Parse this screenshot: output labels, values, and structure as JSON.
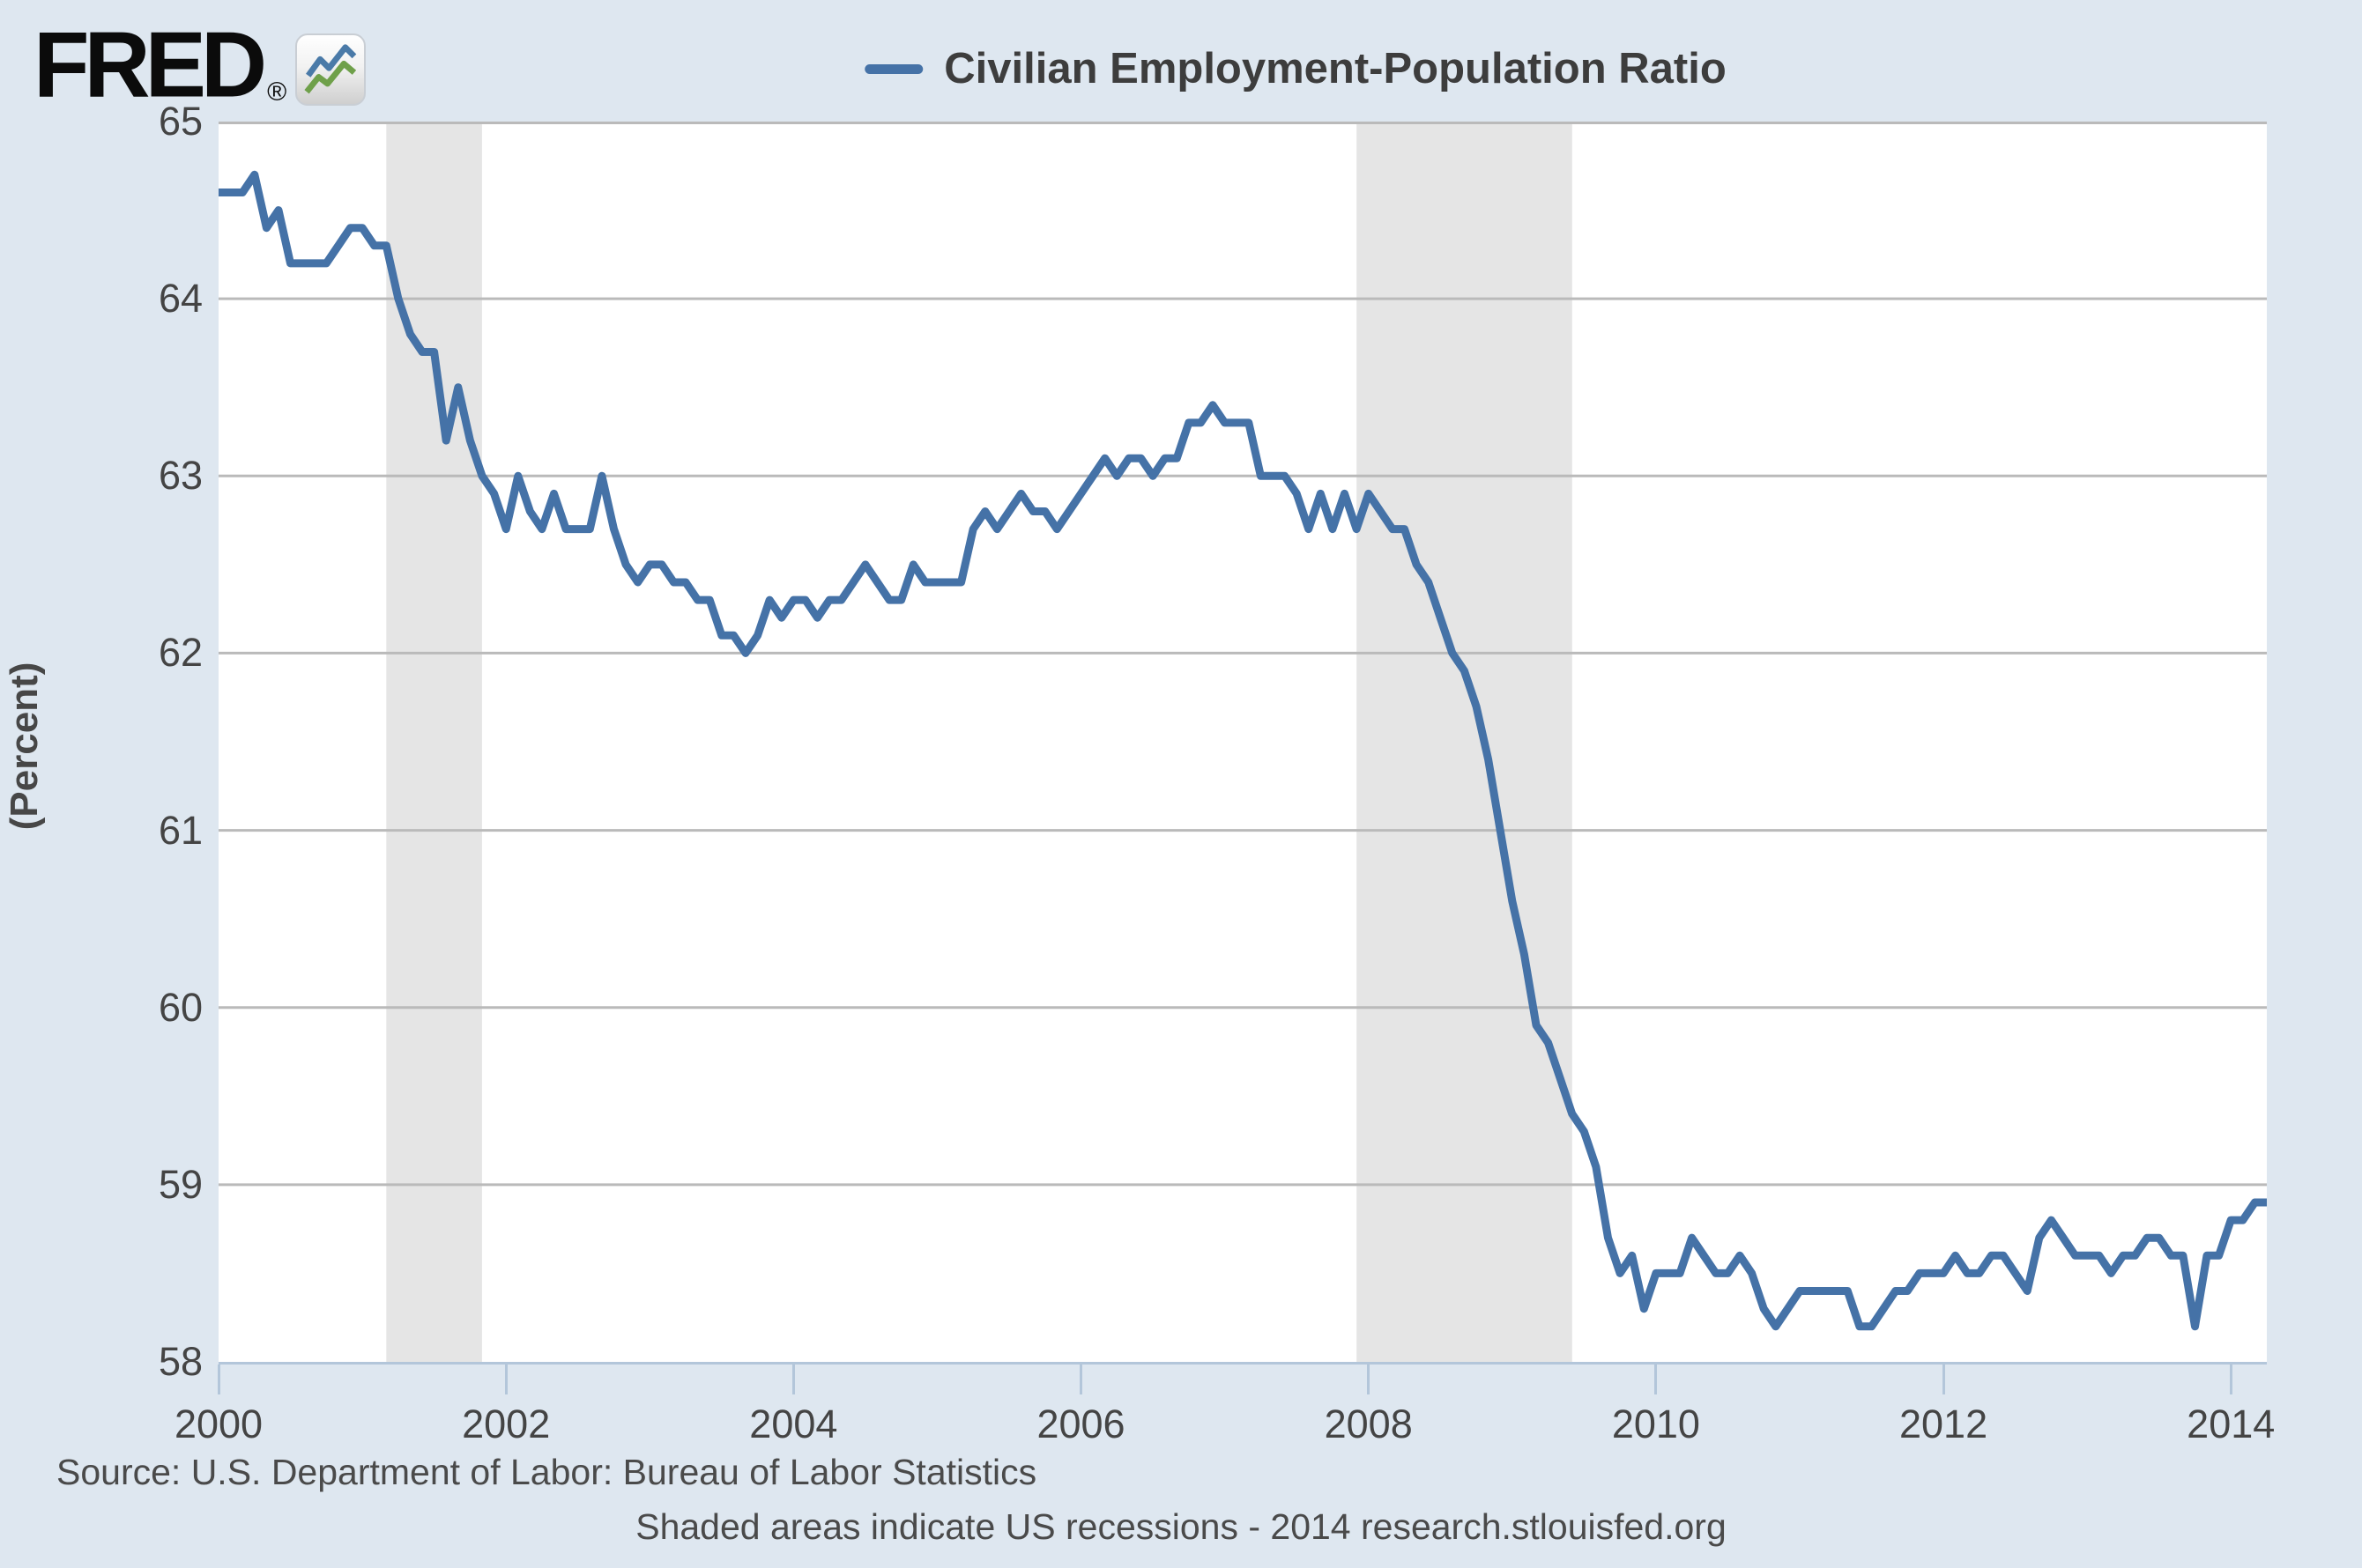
{
  "header": {
    "logo_text": "FRED",
    "logo_registered": "®",
    "legend_label": "Civilian Employment-Population Ratio"
  },
  "footer": {
    "source_line": "Source: U.S. Department of Labor: Bureau of Labor Statistics",
    "note_line": "Shaded areas indicate US recessions - 2014 research.stlouisfed.org"
  },
  "colors": {
    "page_background": "#dee7f0",
    "plot_background": "#ffffff",
    "gridline": "#bababa",
    "recession_band": "#e5e5e5",
    "axis": "#b3c6da",
    "line": "#4572a7",
    "text": "#444444",
    "logo_icon_blue": "#4a7aa8",
    "logo_icon_green": "#6fa04a"
  },
  "chart_data": {
    "type": "line",
    "title": "Civilian Employment-Population Ratio",
    "ylabel": "(Percent)",
    "xlabel": "",
    "series_name": "Civilian Employment-Population Ratio",
    "line_color": "#4572a7",
    "frequency": "monthly",
    "x_monthly_start": "2000-01",
    "x_monthly_end": "2014-04",
    "xlim": [
      2000.0,
      2014.25
    ],
    "ylim": [
      58,
      65
    ],
    "y_ticks": [
      58,
      59,
      60,
      61,
      62,
      63,
      64,
      65
    ],
    "x_ticks": [
      2000,
      2002,
      2004,
      2006,
      2008,
      2010,
      2012,
      2014
    ],
    "grid": "horizontal",
    "legend_position": "top-center",
    "recessions": [
      {
        "start": 2001.167,
        "end": 2001.833
      },
      {
        "start": 2007.917,
        "end": 2009.417
      }
    ],
    "values": [
      64.6,
      64.6,
      64.6,
      64.7,
      64.4,
      64.5,
      64.2,
      64.2,
      64.2,
      64.2,
      64.3,
      64.4,
      64.4,
      64.3,
      64.3,
      64.0,
      63.8,
      63.7,
      63.7,
      63.2,
      63.5,
      63.2,
      63.0,
      62.9,
      62.7,
      63.0,
      62.8,
      62.7,
      62.9,
      62.7,
      62.7,
      62.7,
      63.0,
      62.7,
      62.5,
      62.4,
      62.5,
      62.5,
      62.4,
      62.4,
      62.3,
      62.3,
      62.1,
      62.1,
      62.0,
      62.1,
      62.3,
      62.2,
      62.3,
      62.3,
      62.2,
      62.3,
      62.3,
      62.4,
      62.5,
      62.4,
      62.3,
      62.3,
      62.5,
      62.4,
      62.4,
      62.4,
      62.4,
      62.7,
      62.8,
      62.7,
      62.8,
      62.9,
      62.8,
      62.8,
      62.7,
      62.8,
      62.9,
      63.0,
      63.1,
      63.0,
      63.1,
      63.1,
      63.0,
      63.1,
      63.1,
      63.3,
      63.3,
      63.4,
      63.3,
      63.3,
      63.3,
      63.0,
      63.0,
      63.0,
      62.9,
      62.7,
      62.9,
      62.7,
      62.9,
      62.7,
      62.9,
      62.8,
      62.7,
      62.7,
      62.5,
      62.4,
      62.2,
      62.0,
      61.9,
      61.7,
      61.4,
      61.0,
      60.6,
      60.3,
      59.9,
      59.8,
      59.6,
      59.4,
      59.3,
      59.1,
      58.7,
      58.5,
      58.6,
      58.3,
      58.5,
      58.5,
      58.5,
      58.7,
      58.6,
      58.5,
      58.5,
      58.6,
      58.5,
      58.3,
      58.2,
      58.3,
      58.4,
      58.4,
      58.4,
      58.4,
      58.4,
      58.2,
      58.2,
      58.3,
      58.4,
      58.4,
      58.5,
      58.5,
      58.5,
      58.6,
      58.5,
      58.5,
      58.6,
      58.6,
      58.5,
      58.4,
      58.7,
      58.8,
      58.7,
      58.6,
      58.6,
      58.6,
      58.5,
      58.6,
      58.6,
      58.7,
      58.7,
      58.6,
      58.6,
      58.2,
      58.6,
      58.6,
      58.8,
      58.8,
      58.9,
      58.9
    ]
  }
}
